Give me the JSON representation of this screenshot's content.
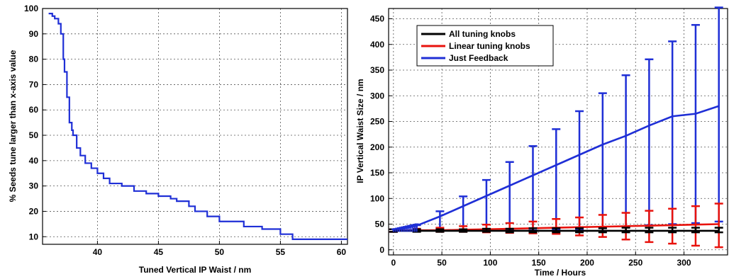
{
  "chart_data": [
    {
      "type": "line",
      "xlabel": "Tuned Vertical IP Waist / nm",
      "ylabel": "% Seeds tune larger than x-axis value",
      "xlim": [
        35.5,
        60.5
      ],
      "ylim": [
        7,
        100
      ],
      "xticks": [
        40,
        45,
        50,
        55,
        60
      ],
      "yticks": [
        10,
        20,
        30,
        40,
        50,
        60,
        70,
        80,
        90,
        100
      ],
      "grid": true,
      "series": [
        {
          "color": "#1f2fd6",
          "x": [
            36.0,
            36.3,
            36.5,
            36.8,
            37.0,
            37.2,
            37.3,
            37.5,
            37.7,
            37.9,
            38.0,
            38.3,
            38.6,
            39.0,
            39.5,
            40.0,
            40.5,
            41.0,
            42.0,
            43.0,
            44.0,
            45.0,
            46.0,
            46.5,
            47.5,
            48.0,
            49.0,
            50.0,
            52.0,
            53.5,
            55.0,
            56.0,
            58.0,
            60.5
          ],
          "y": [
            98,
            97,
            96,
            94,
            90,
            80,
            75,
            65,
            55,
            52,
            50,
            45,
            42,
            39,
            37,
            35,
            33,
            31,
            30,
            28,
            27,
            26,
            25,
            24,
            22,
            20,
            18,
            16,
            14,
            13,
            11,
            9,
            9,
            9
          ]
        }
      ]
    },
    {
      "type": "line",
      "xlabel": "Time / Hours",
      "ylabel": "IP Vertical Waist Size / nm",
      "xlim": [
        -5,
        345
      ],
      "ylim": [
        -10,
        470
      ],
      "xticks": [
        0,
        50,
        100,
        150,
        200,
        250,
        300
      ],
      "yticks": [
        0,
        50,
        100,
        150,
        200,
        250,
        300,
        350,
        400,
        450
      ],
      "grid": true,
      "legend": "top-left",
      "series": [
        {
          "name": "All tuning knobs",
          "color": "#000000",
          "x": [
            0,
            24,
            48,
            72,
            96,
            120,
            144,
            168,
            192,
            216,
            240,
            264,
            288,
            312,
            336
          ],
          "y": [
            37,
            37,
            37,
            37,
            37,
            37,
            37,
            37,
            37,
            37,
            37,
            37,
            37,
            37,
            37
          ],
          "err_low": [
            35,
            35,
            35,
            35,
            35,
            34,
            34,
            34,
            34,
            34,
            34,
            34,
            34,
            34,
            34
          ],
          "err_high": [
            40,
            40,
            40,
            40,
            41,
            41,
            42,
            42,
            42,
            42,
            43,
            43,
            43,
            43,
            43
          ]
        },
        {
          "name": "Linear tuning knobs",
          "color": "#e8120c",
          "x": [
            0,
            24,
            48,
            72,
            96,
            120,
            144,
            168,
            192,
            216,
            240,
            264,
            288,
            312,
            336
          ],
          "y": [
            37,
            38,
            38,
            39,
            40,
            41,
            42,
            43,
            44,
            45,
            46,
            47,
            48,
            49,
            50
          ],
          "err_low": [
            35,
            36,
            35,
            35,
            34,
            33,
            32,
            31,
            28,
            25,
            20,
            15,
            12,
            8,
            5
          ],
          "err_high": [
            40,
            41,
            43,
            46,
            49,
            52,
            55,
            60,
            63,
            68,
            72,
            76,
            80,
            85,
            90
          ]
        },
        {
          "name": "Just Feedback",
          "color": "#1f2fd6",
          "x": [
            0,
            24,
            48,
            72,
            96,
            120,
            144,
            168,
            192,
            216,
            240,
            264,
            288,
            312,
            336
          ],
          "y": [
            37,
            47,
            65,
            85,
            105,
            125,
            145,
            165,
            185,
            205,
            222,
            242,
            260,
            265,
            280
          ],
          "err_low": [
            35,
            36,
            36,
            37,
            38,
            38,
            38,
            40,
            40,
            42,
            45,
            48,
            50,
            52,
            55
          ],
          "err_high": [
            40,
            48,
            75,
            104,
            136,
            171,
            202,
            235,
            270,
            305,
            340,
            371,
            406,
            438,
            472
          ]
        }
      ]
    }
  ]
}
